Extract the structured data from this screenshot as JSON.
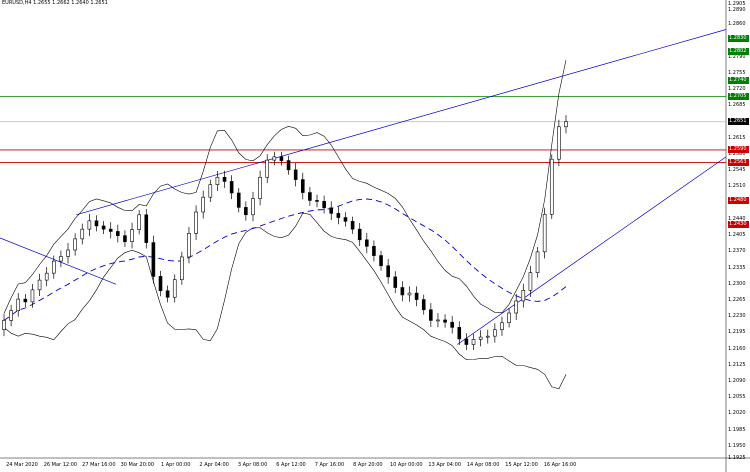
{
  "window": {
    "title": "EURUSD,H4 1.2655 1.2662 1.2640 1.2651"
  },
  "colors": {
    "background": "#ffffff",
    "candle": "#000000",
    "bollinger": "#000000",
    "trendline": "#0000cc",
    "moving_average": "#0000cc",
    "support_resistance": "#cc0000",
    "resistance_green": "#008000",
    "current_price_line": "#c0c0c0",
    "badge_green": "#008000",
    "badge_red": "#cc0000",
    "badge_black": "#000000"
  },
  "chart_data": {
    "type": "candlestick",
    "title": "",
    "y_axis": {
      "ylim": [
        1.1925,
        1.2905
      ],
      "ticks": [
        "1.2905",
        "1.2890",
        "1.2860",
        "1.2825",
        "1.2790",
        "1.2755",
        "1.2720",
        "1.2685",
        "1.2650",
        "1.2615",
        "1.2580",
        "1.2545",
        "1.2510",
        "1.2475",
        "1.2440",
        "1.2405",
        "1.2370",
        "1.2335",
        "1.2300",
        "1.2265",
        "1.2230",
        "1.2195",
        "1.2160",
        "1.2125",
        "1.2090",
        "1.2055",
        "1.2020",
        "1.1985",
        "1.1950",
        "1.1925"
      ]
    },
    "price_badges": [
      {
        "text": "1.2830",
        "style": "green"
      },
      {
        "text": "1.2802",
        "style": "green"
      },
      {
        "text": "1.2740",
        "style": "green"
      },
      {
        "text": "1.2705",
        "style": "green"
      },
      {
        "text": "1.2651",
        "style": "black"
      },
      {
        "text": "1.2590",
        "style": "red"
      },
      {
        "text": "1.2563",
        "style": "red"
      },
      {
        "text": "1.2480",
        "style": "red"
      },
      {
        "text": "1.2430",
        "style": "red"
      }
    ],
    "horizontal_lines": [
      {
        "price": 1.2705,
        "style": "green"
      },
      {
        "price": 1.2651,
        "style": "current"
      },
      {
        "price": 1.259,
        "style": "red"
      },
      {
        "price": 1.2563,
        "style": "red"
      }
    ],
    "time_labels": [
      "24 Mar 2020",
      "26 Mar 12:00",
      "27 Mar 16:00",
      "30 Mar 20:00",
      "1 Apr 00:00",
      "2 Apr 04:00",
      "3 Apr 08:00",
      "6 Apr 12:00",
      "7 Apr 16:00",
      "8 Apr 20:00",
      "10 Apr 00:00",
      "13 Apr 04:00",
      "14 Apr 08:00",
      "15 Apr 12:00",
      "16 Apr 16:00"
    ],
    "closes": [
      1.2222,
      1.2243,
      1.2268,
      1.2262,
      1.2288,
      1.2309,
      1.2324,
      1.235,
      1.236,
      1.2374,
      1.2398,
      1.2419,
      1.2437,
      1.2426,
      1.2419,
      1.2414,
      1.2405,
      1.2392,
      1.2418,
      1.245,
      1.239,
      1.2317,
      1.2286,
      1.2272,
      1.231,
      1.2359,
      1.241,
      1.2456,
      1.2488,
      1.2515,
      1.2531,
      1.2522,
      1.2497,
      1.2466,
      1.245,
      1.2485,
      1.2531,
      1.2568,
      1.2575,
      1.2567,
      1.2547,
      1.2526,
      1.2498,
      1.2481,
      1.2479,
      1.2465,
      1.2453,
      1.2444,
      1.2436,
      1.2419,
      1.2396,
      1.2382,
      1.2362,
      1.234,
      1.2316,
      1.2293,
      1.2277,
      1.2281,
      1.2267,
      1.2245,
      1.2222,
      1.2223,
      1.2218,
      1.2207,
      1.2182,
      1.217,
      1.2181,
      1.2186,
      1.2188,
      1.2202,
      1.2217,
      1.2238,
      1.2264,
      1.2287,
      1.2325,
      1.237,
      1.2451,
      1.257,
      1.264,
      1.2651
    ],
    "ranges": [
      0.004,
      0.0036,
      0.0037,
      0.0031,
      0.0036,
      0.0038,
      0.0038,
      0.0034,
      0.0037,
      0.0043,
      0.0035,
      0.0034,
      0.0043,
      0.0034,
      0.003,
      0.0043,
      0.0042,
      0.0033,
      0.0042,
      0.0029,
      0.0036,
      0.0043,
      0.0034,
      0.0032,
      0.0032,
      0.0032,
      0.0039,
      0.0041,
      0.004,
      0.003,
      0.0039,
      0.004,
      0.0038,
      0.0031,
      0.0037,
      0.0041,
      0.0041,
      0.0036,
      0.0032,
      0.0031,
      0.003,
      0.0042,
      0.0042,
      0.0034,
      0.0036,
      0.0035,
      0.0041,
      0.0041,
      0.0033,
      0.0029,
      0.0038,
      0.0043,
      0.0036,
      0.003,
      0.0042,
      0.0035,
      0.0039,
      0.0042,
      0.0041,
      0.003,
      0.0041,
      0.0042,
      0.0034,
      0.0038,
      0.0037,
      0.0035,
      0.0034,
      0.0043,
      0.004,
      0.004,
      0.0038,
      0.0029,
      0.0043,
      0.0041,
      0.0041,
      0.003,
      0.0041,
      0.0029,
      0.0043,
      0.004
    ],
    "trendlines": [
      {
        "from": [
          0.105,
          1.245
        ],
        "to": [
          1.0,
          1.285
        ],
        "style": "trendline"
      },
      {
        "from": [
          0.0,
          1.24
        ],
        "to": [
          0.16,
          1.23
        ],
        "style": "trendline"
      },
      {
        "from": [
          0.63,
          1.217
        ],
        "to": [
          1.0,
          1.2575
        ],
        "style": "trendline"
      }
    ]
  }
}
